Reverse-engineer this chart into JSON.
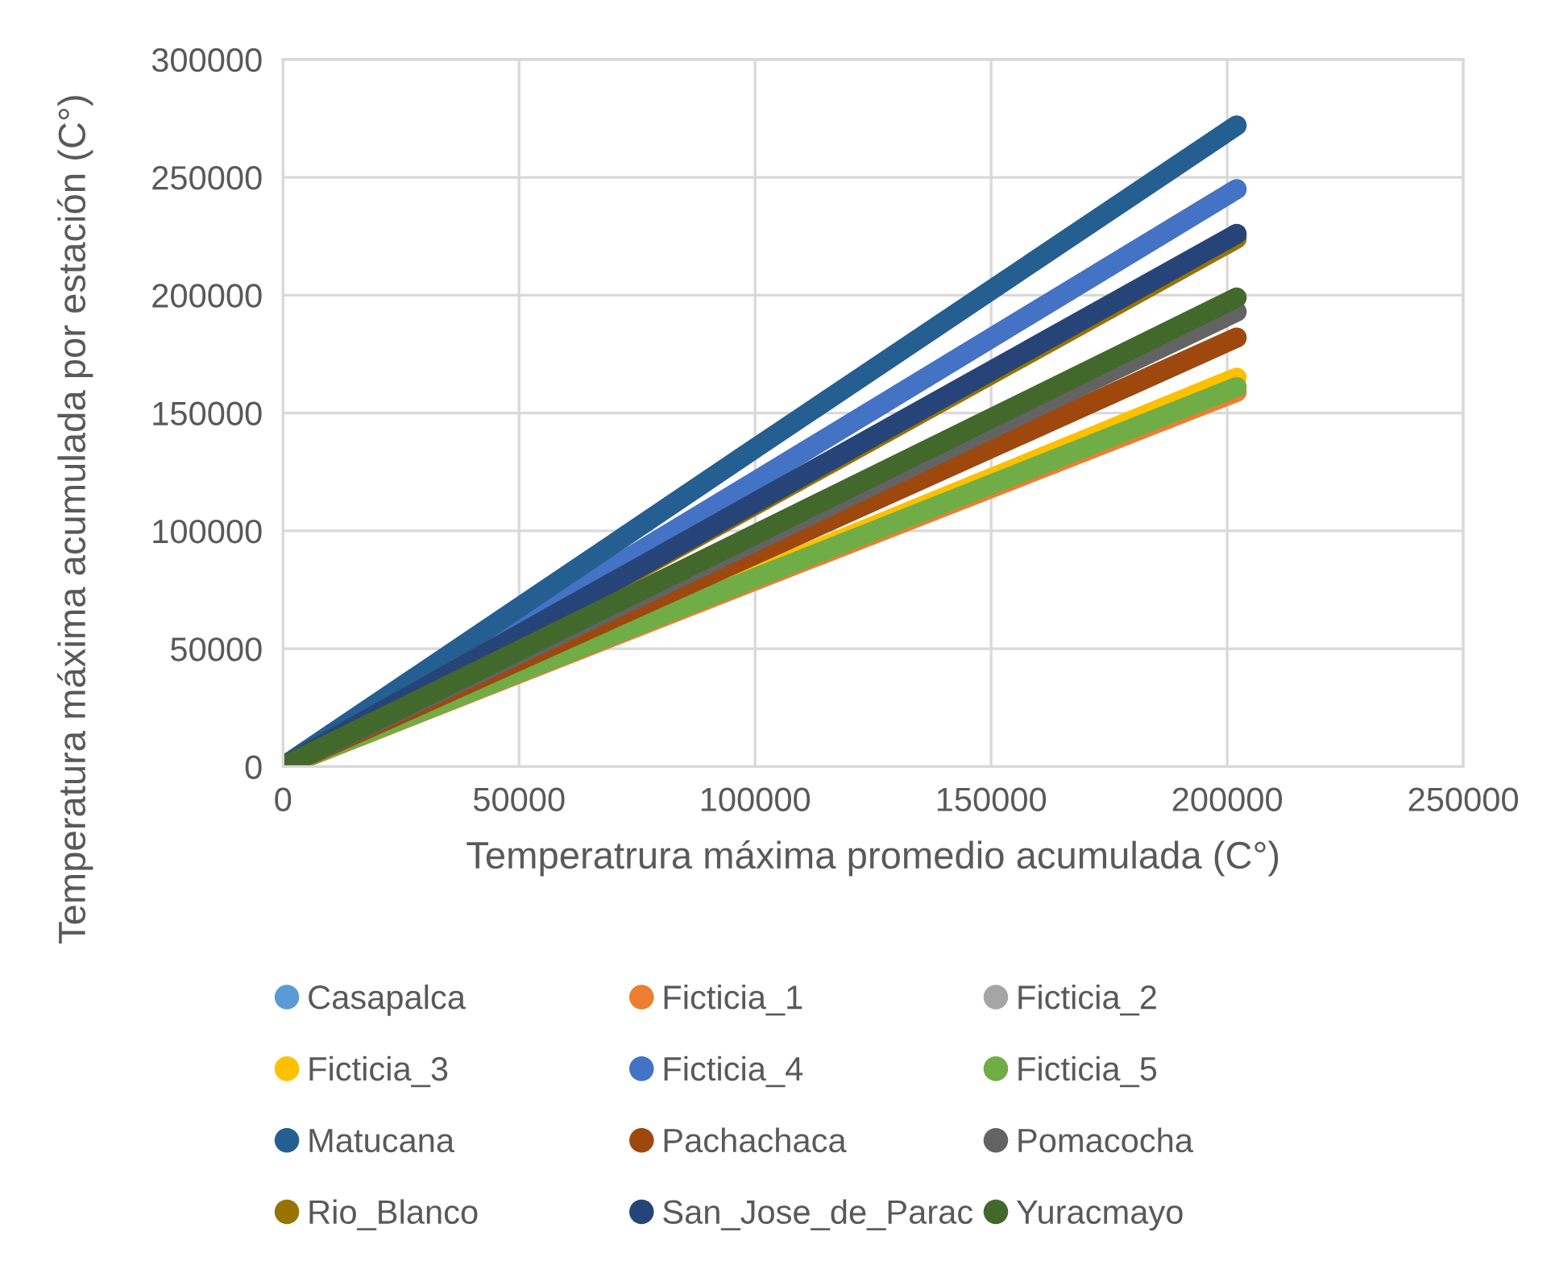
{
  "chart_data": {
    "type": "line",
    "xlabel": "Temperatrura máxima promedio acumulada (C°)",
    "ylabel": "Temperatura máxima acumulada por estación (C°)",
    "x": [
      0,
      100000,
      202000
    ],
    "xlim": [
      0,
      250000
    ],
    "xticks": [
      0,
      50000,
      100000,
      150000,
      200000,
      250000
    ],
    "ylim": [
      0,
      300000
    ],
    "yticks": [
      0,
      50000,
      100000,
      150000,
      200000,
      250000,
      300000
    ],
    "grid": true,
    "legend": "bottom",
    "line_style": "solid",
    "series": [
      {
        "name": "Casapalca",
        "color": "#5b9bd5",
        "values": [
          null,
          null,
          null
        ]
      },
      {
        "name": "Ficticia_1",
        "color": "#ed7d31",
        "values": [
          0,
          79000,
          159000
        ]
      },
      {
        "name": "Ficticia_2",
        "color": "#a5a5a5",
        "values": [
          null,
          null,
          null
        ]
      },
      {
        "name": "Ficticia_3",
        "color": "#ffc000",
        "values": [
          0,
          81500,
          165000
        ]
      },
      {
        "name": "Ficticia_4",
        "color": "#4472c4",
        "values": [
          0,
          121000,
          245000
        ]
      },
      {
        "name": "Ficticia_5",
        "color": "#70ad47",
        "values": [
          0,
          80000,
          161000
        ]
      },
      {
        "name": "Matucana",
        "color": "#255e91",
        "values": [
          0,
          135000,
          272000
        ]
      },
      {
        "name": "Pachachaca",
        "color": "#9e480e",
        "values": [
          0,
          90000,
          182000
        ]
      },
      {
        "name": "Pomacocha",
        "color": "#636363",
        "values": [
          0,
          95500,
          193000
        ]
      },
      {
        "name": "Rio_Blanco",
        "color": "#997300",
        "values": [
          0,
          111000,
          224000
        ]
      },
      {
        "name": "San_Jose_de_Parac",
        "color": "#264478",
        "values": [
          0,
          112000,
          226000
        ]
      },
      {
        "name": "Yuracmayo",
        "color": "#43682b",
        "values": [
          0,
          98500,
          199000
        ]
      }
    ]
  }
}
